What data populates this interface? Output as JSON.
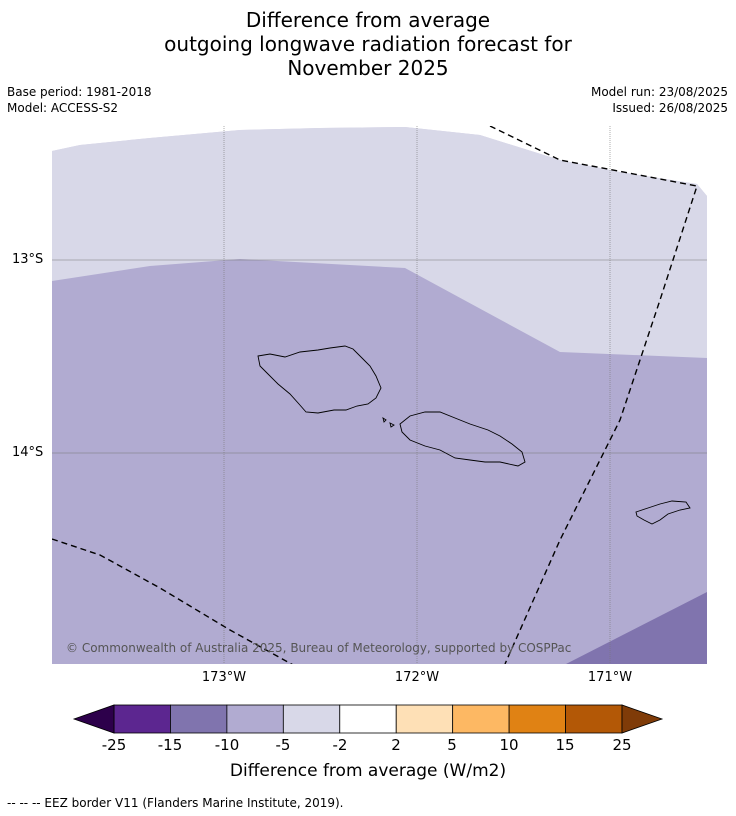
{
  "title": {
    "line1": "Difference from average",
    "line2": "outgoing longwave radiation forecast for",
    "line3": "November 2025"
  },
  "meta": {
    "base_period": "Base period: 1981-2018",
    "model": "Model: ACCESS-S2",
    "model_run": "Model run: 23/08/2025",
    "issued": "Issued: 26/08/2025"
  },
  "map": {
    "latitude_labels": [
      "13°S",
      "14°S"
    ],
    "longitude_labels": [
      "173°W",
      "172°W",
      "171°W"
    ],
    "copyright": "© Commonwealth of Australia 2025, Bureau of Meteorology, supported by COSPPac",
    "region_colors": {
      "light": "#d8d8e8",
      "medium": "#b1abd1",
      "dark": "#8074ae"
    }
  },
  "colorbar": {
    "ticks": [
      "-25",
      "-15",
      "-10",
      "-5",
      "-2",
      "2",
      "5",
      "10",
      "15",
      "25"
    ],
    "colors": [
      "#5c2690",
      "#8074ae",
      "#b1abd1",
      "#d8d8e8",
      "#ffffff",
      "#fee0b6",
      "#fdb863",
      "#e08214",
      "#b35806"
    ],
    "under_color": "#2d004b",
    "over_color": "#7f3b08",
    "label": "Difference from average (W/m2)"
  },
  "footer": {
    "eez_legend": "--  --  -- EEZ border V11 (Flanders Marine Institute, 2019)."
  }
}
